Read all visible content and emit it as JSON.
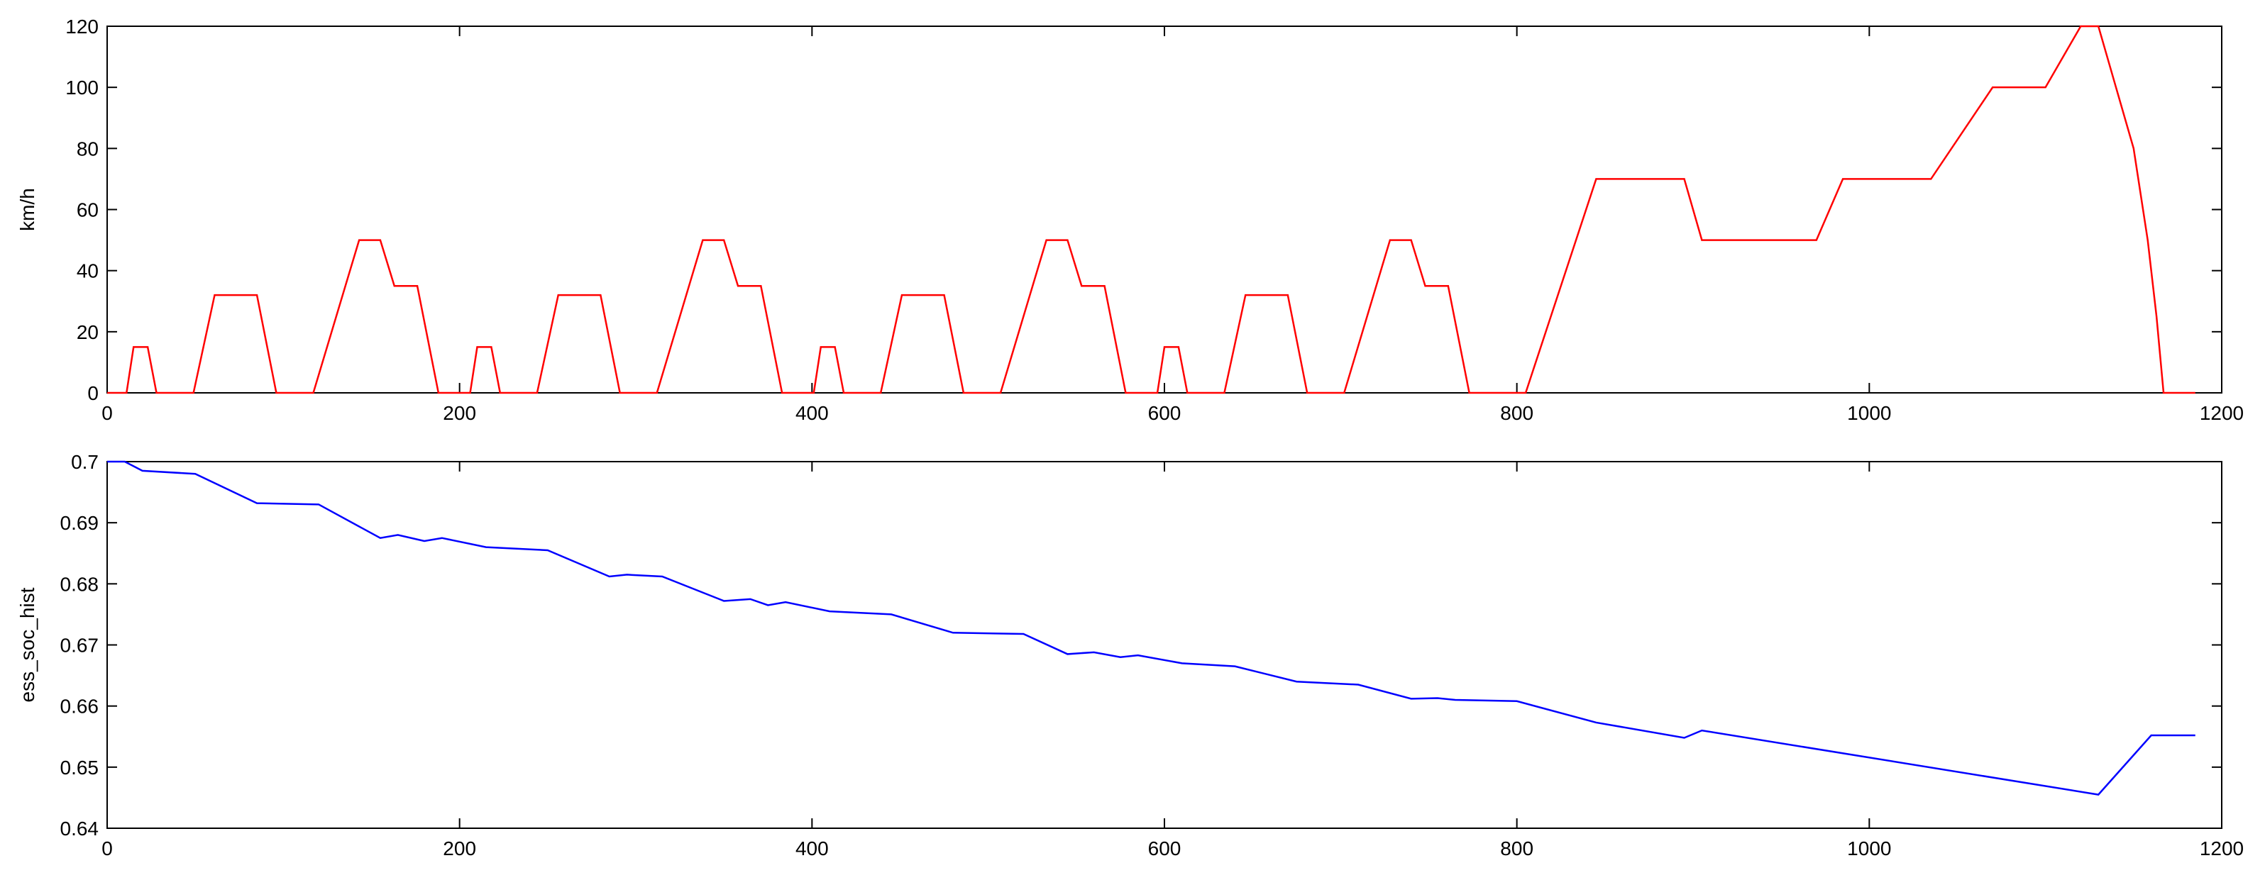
{
  "chart_data": [
    {
      "type": "line",
      "ylabel": "km/h",
      "color": "#ff0000",
      "xlim": [
        0,
        1200
      ],
      "xticks": [
        0,
        200,
        400,
        600,
        800,
        1000,
        1200
      ],
      "ylim": [
        0,
        120
      ],
      "yticks": [
        0,
        20,
        40,
        60,
        80,
        100,
        120
      ],
      "x": [
        0,
        11,
        15,
        23,
        28,
        49,
        61,
        85,
        96,
        117,
        143,
        155,
        163,
        176,
        188,
        195,
        206,
        210,
        218,
        223,
        244,
        256,
        280,
        291,
        312,
        338,
        350,
        358,
        371,
        383,
        390,
        401,
        405,
        413,
        418,
        439,
        451,
        475,
        486,
        507,
        533,
        545,
        553,
        566,
        578,
        585,
        596,
        600,
        608,
        613,
        634,
        646,
        670,
        681,
        702,
        728,
        740,
        748,
        761,
        773,
        805,
        845,
        895,
        905,
        970,
        985,
        1035,
        1070,
        1100,
        1120,
        1130,
        1140,
        1150,
        1158,
        1163,
        1167,
        1185
      ],
      "values": [
        0,
        0,
        15,
        15,
        0,
        0,
        32,
        32,
        0,
        0,
        50,
        50,
        35,
        35,
        0,
        0,
        0,
        15,
        15,
        0,
        0,
        32,
        32,
        0,
        0,
        50,
        50,
        35,
        35,
        0,
        0,
        0,
        15,
        15,
        0,
        0,
        32,
        32,
        0,
        0,
        50,
        50,
        35,
        35,
        0,
        0,
        0,
        15,
        15,
        0,
        0,
        32,
        32,
        0,
        0,
        50,
        50,
        35,
        35,
        0,
        0,
        70,
        70,
        50,
        50,
        70,
        70,
        100,
        100,
        120,
        120,
        100,
        80,
        50,
        25,
        0,
        0
      ]
    },
    {
      "type": "line",
      "ylabel": "ess_soc_hist",
      "color": "#0000ff",
      "xlim": [
        0,
        1200
      ],
      "xticks": [
        0,
        200,
        400,
        600,
        800,
        1000,
        1200
      ],
      "ylim": [
        0.64,
        0.7
      ],
      "yticks": [
        0.64,
        0.65,
        0.66,
        0.67,
        0.68,
        0.69,
        0.7
      ],
      "x": [
        0,
        10,
        20,
        50,
        85,
        120,
        155,
        165,
        180,
        190,
        215,
        250,
        285,
        295,
        315,
        350,
        365,
        375,
        385,
        410,
        445,
        480,
        520,
        545,
        560,
        575,
        585,
        610,
        640,
        675,
        710,
        740,
        755,
        765,
        800,
        845,
        895,
        905,
        1130,
        1160,
        1185
      ],
      "values": [
        0.7,
        0.7,
        0.6985,
        0.698,
        0.6932,
        0.693,
        0.6875,
        0.688,
        0.687,
        0.6875,
        0.686,
        0.6855,
        0.6812,
        0.6815,
        0.6812,
        0.6772,
        0.6775,
        0.6765,
        0.677,
        0.6755,
        0.675,
        0.672,
        0.6718,
        0.6685,
        0.6688,
        0.668,
        0.6683,
        0.667,
        0.6665,
        0.664,
        0.6635,
        0.6612,
        0.6613,
        0.661,
        0.6608,
        0.6573,
        0.6548,
        0.656,
        0.6455,
        0.6552,
        0.6552
      ]
    }
  ]
}
